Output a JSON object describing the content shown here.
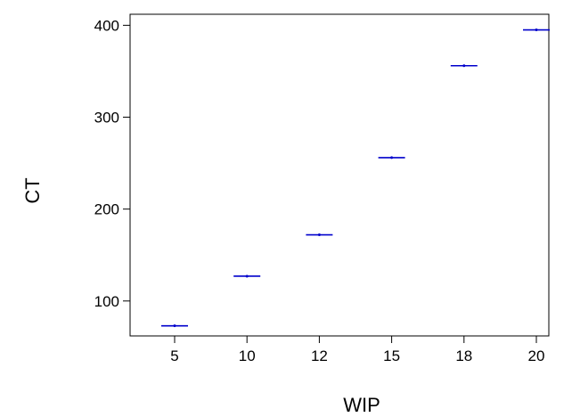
{
  "chart_data": {
    "type": "scatter",
    "title": "",
    "xlabel": "WIP",
    "ylabel": "CT",
    "categories": [
      "5",
      "10",
      "12",
      "15",
      "18",
      "20"
    ],
    "series": [
      {
        "values": [
          73,
          127,
          172,
          256,
          356,
          395
        ]
      }
    ],
    "yticks": [
      "100",
      "200",
      "300",
      "400"
    ],
    "ylim": [
      62,
      412
    ],
    "grid": false,
    "legend": "none",
    "colors": {
      "marker": "#0000cc",
      "axis": "#000000"
    }
  }
}
